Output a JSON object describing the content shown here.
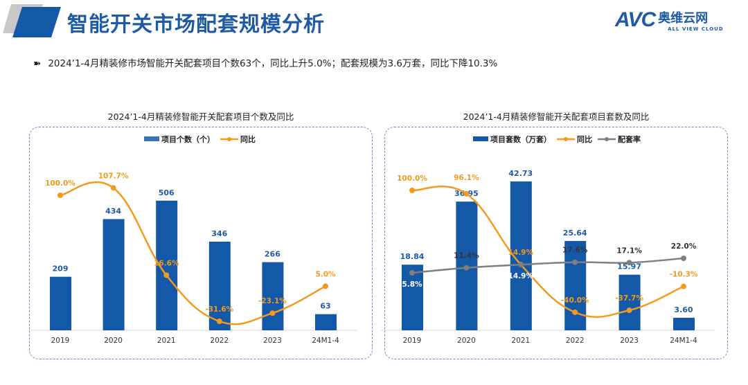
{
  "header": {
    "title": "智能开关市场配套规模分析",
    "logo_text": "AVC",
    "logo_cn": "奥维云网",
    "logo_en": "ALL VIEW CLOUD",
    "bullet_icon": "double-arrow-icon",
    "summary": "2024’1-4月精装修市场智能开关配套项目个数63个，同比上升5.0%；配套规模为3.6万套，同比下降10.3%"
  },
  "colors": {
    "bar": "#1458a8",
    "yoy": "#f39a1e",
    "rate": "#7f7f7f",
    "title": "#1f5aa6"
  },
  "chart_data": [
    {
      "type": "bar",
      "title": "2024’1-4月精装修智能开关配套项目个数及同比",
      "categories": [
        "2019",
        "2020",
        "2021",
        "2022",
        "2023",
        "24M1-4"
      ],
      "series": [
        {
          "name": "项目个数（个）",
          "type": "bar",
          "values": [
            209,
            434,
            506,
            346,
            266,
            63
          ],
          "labels": [
            "209",
            "434",
            "506",
            "346",
            "266",
            "63"
          ]
        },
        {
          "name": "同比",
          "type": "line",
          "values": [
            100.0,
            107.7,
            16.6,
            -31.6,
            -23.1,
            5.0
          ],
          "labels": [
            "100.0%",
            "107.7%",
            "16.6%",
            "-31.6%",
            "-23.1%",
            "5.0%"
          ]
        }
      ]
    },
    {
      "type": "bar",
      "title": "2024’1-4月精装修智能开关配套项目套数及同比",
      "categories": [
        "2019",
        "2020",
        "2021",
        "2022",
        "2023",
        "24M1-4"
      ],
      "series": [
        {
          "name": "项目套数（万套）",
          "type": "bar",
          "values": [
            18.84,
            36.95,
            42.73,
            25.64,
            15.97,
            3.6
          ],
          "labels": [
            "18.84",
            "36.95",
            "42.73",
            "25.64",
            "15.97",
            "3.60"
          ]
        },
        {
          "name": "同比",
          "type": "line",
          "values": [
            100.0,
            96.1,
            14.9,
            -40.0,
            -37.7,
            -10.3
          ],
          "labels": [
            "100.0%",
            "96.1%",
            "14.9%",
            "-40.0%",
            "-37.7%",
            "-10.3%"
          ]
        },
        {
          "name": "配套率",
          "type": "line",
          "values": [
            5.8,
            11.4,
            14.9,
            17.6,
            17.1,
            22.0
          ],
          "labels": [
            "5.8%",
            "11.4%",
            "14.9%",
            "17.6%",
            "17.1%",
            "22.0%"
          ]
        }
      ]
    }
  ]
}
